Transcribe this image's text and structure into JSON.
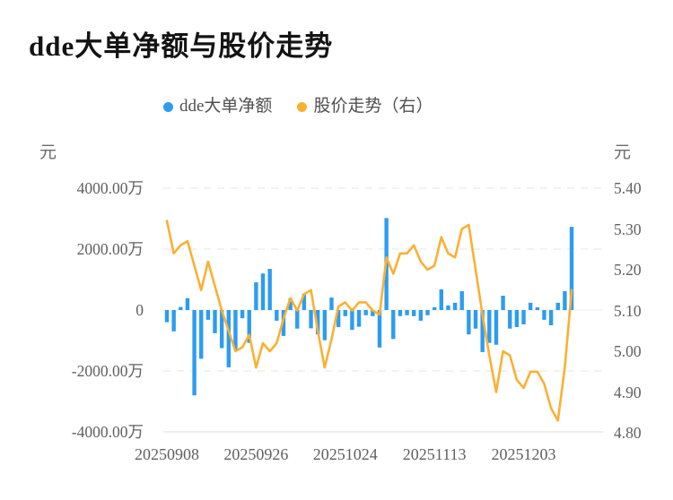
{
  "title": "dde大单净额与股价走势",
  "legend": {
    "items": [
      {
        "label": "dde大单净额",
        "color": "#2D9CF0",
        "marker": "circle"
      },
      {
        "label": "股价走势（右）",
        "color": "#FBB034",
        "marker": "circle"
      }
    ]
  },
  "left_axis": {
    "unit": "元",
    "tick_labels": [
      "4000.00万",
      "2000.00万",
      "0",
      "-2000.00万",
      "-4000.00万"
    ],
    "tick_values": [
      4000,
      2000,
      0,
      -2000,
      -4000
    ]
  },
  "right_axis": {
    "unit": "元",
    "tick_labels": [
      "5.40",
      "5.30",
      "5.20",
      "5.10",
      "5.00",
      "4.90",
      "4.80"
    ],
    "tick_values": [
      5.4,
      5.3,
      5.2,
      5.1,
      5.0,
      4.9,
      4.8
    ]
  },
  "x_axis": {
    "tick_labels": [
      "20250908",
      "20250926",
      "20251024",
      "20251113",
      "20251203"
    ],
    "tick_slots": [
      0,
      13,
      26,
      39,
      52
    ]
  },
  "colors": {
    "bar": "#2D9CF0",
    "line": "#FBB034",
    "grid_dashed": "#e4e4e4",
    "grid_zero": "#ececec",
    "axis_line": "#dedede",
    "title_text": "#141414",
    "axis_text": "#606060",
    "legend_text": "#4f4f4f"
  },
  "chart_data": {
    "type": "bar",
    "title": "dde大单净额与股价走势",
    "legend_position": "top",
    "grid": true,
    "x_tick_labels": [
      "20250908",
      "20250926",
      "20251024",
      "20251113",
      "20251203"
    ],
    "x_tick_slots": [
      0,
      13,
      26,
      39,
      52
    ],
    "num_points": 60,
    "left_ylabel": "元",
    "right_ylabel": "元",
    "left_ylim_wan": [
      -4000,
      4000
    ],
    "right_ylim": [
      4.8,
      5.4
    ],
    "series": [
      {
        "name": "dde大单净额",
        "type": "bar",
        "y_axis": "left",
        "unit": "万元",
        "values": [
          -400,
          -700,
          100,
          390,
          -2800,
          -1600,
          -320,
          -760,
          -1250,
          -1880,
          -1300,
          -270,
          -1080,
          910,
          1200,
          1350,
          -350,
          -850,
          380,
          -610,
          530,
          -600,
          -800,
          -990,
          410,
          -560,
          -200,
          -650,
          -550,
          -170,
          -200,
          -1230,
          3020,
          -950,
          -200,
          -170,
          -200,
          -350,
          -170,
          90,
          680,
          150,
          240,
          620,
          -800,
          -610,
          -1380,
          -1080,
          -1140,
          470,
          -610,
          -560,
          -470,
          240,
          90,
          -320,
          -500,
          240,
          620,
          2730
        ]
      },
      {
        "name": "股价走势（右）",
        "type": "line",
        "y_axis": "right",
        "unit": "元",
        "values": [
          5.32,
          5.24,
          5.26,
          5.27,
          5.21,
          5.15,
          5.22,
          5.16,
          5.1,
          5.05,
          5.0,
          5.01,
          5.04,
          4.96,
          5.02,
          5.0,
          5.02,
          5.08,
          5.13,
          5.1,
          5.14,
          5.15,
          5.05,
          4.96,
          5.03,
          5.11,
          5.12,
          5.1,
          5.12,
          5.12,
          5.1,
          5.09,
          5.23,
          5.19,
          5.24,
          5.24,
          5.26,
          5.22,
          5.2,
          5.21,
          5.28,
          5.24,
          5.23,
          5.3,
          5.31,
          5.2,
          5.09,
          4.99,
          4.9,
          5.0,
          4.99,
          4.93,
          4.91,
          4.95,
          4.95,
          4.92,
          4.86,
          4.83,
          4.96,
          5.15
        ]
      }
    ]
  }
}
